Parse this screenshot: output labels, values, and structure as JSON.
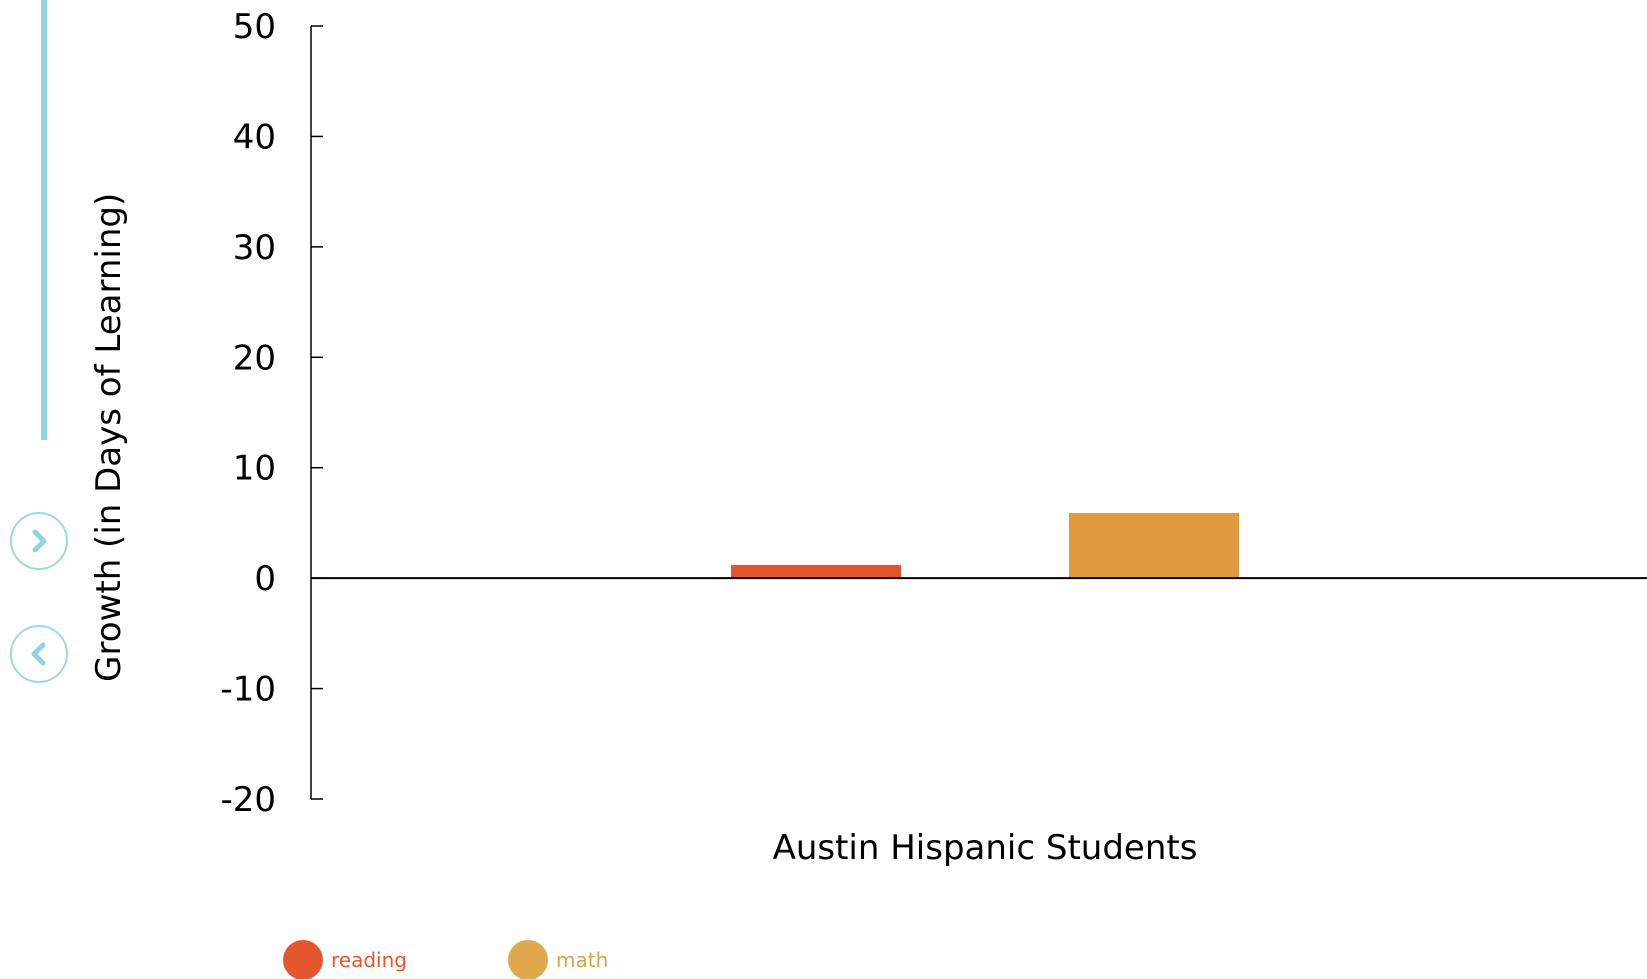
{
  "chart_data": {
    "type": "bar",
    "categories": [
      "Austin Hispanic Students"
    ],
    "series": [
      {
        "name": "reading",
        "values": [
          1.2
        ],
        "color": "#e4572e"
      },
      {
        "name": "math",
        "values": [
          5.9
        ],
        "color": "#e09a3e"
      }
    ],
    "xlabel": "Austin Hispanic Students",
    "ylabel": "Growth (in Days of Learning)",
    "ylim": [
      -20,
      50
    ],
    "yticks": [
      50,
      40,
      30,
      20,
      10,
      0,
      -10,
      -20
    ],
    "ytick_labels": [
      "50",
      "40",
      "30",
      "20",
      "10",
      "0",
      "-10",
      "-20"
    ],
    "grid": false,
    "legend_position": "bottom-left"
  },
  "legend": {
    "items": [
      {
        "label": "reading",
        "swatch_color": "#e4572e",
        "text_color": "#e4572e"
      },
      {
        "label": "math",
        "swatch_color": "#dfa84a",
        "text_color": "#d9a24a"
      }
    ]
  },
  "nav": {
    "next_icon": "chevron-right-icon",
    "prev_icon": "chevron-left-icon",
    "accent_color": "#8fd3e6"
  }
}
